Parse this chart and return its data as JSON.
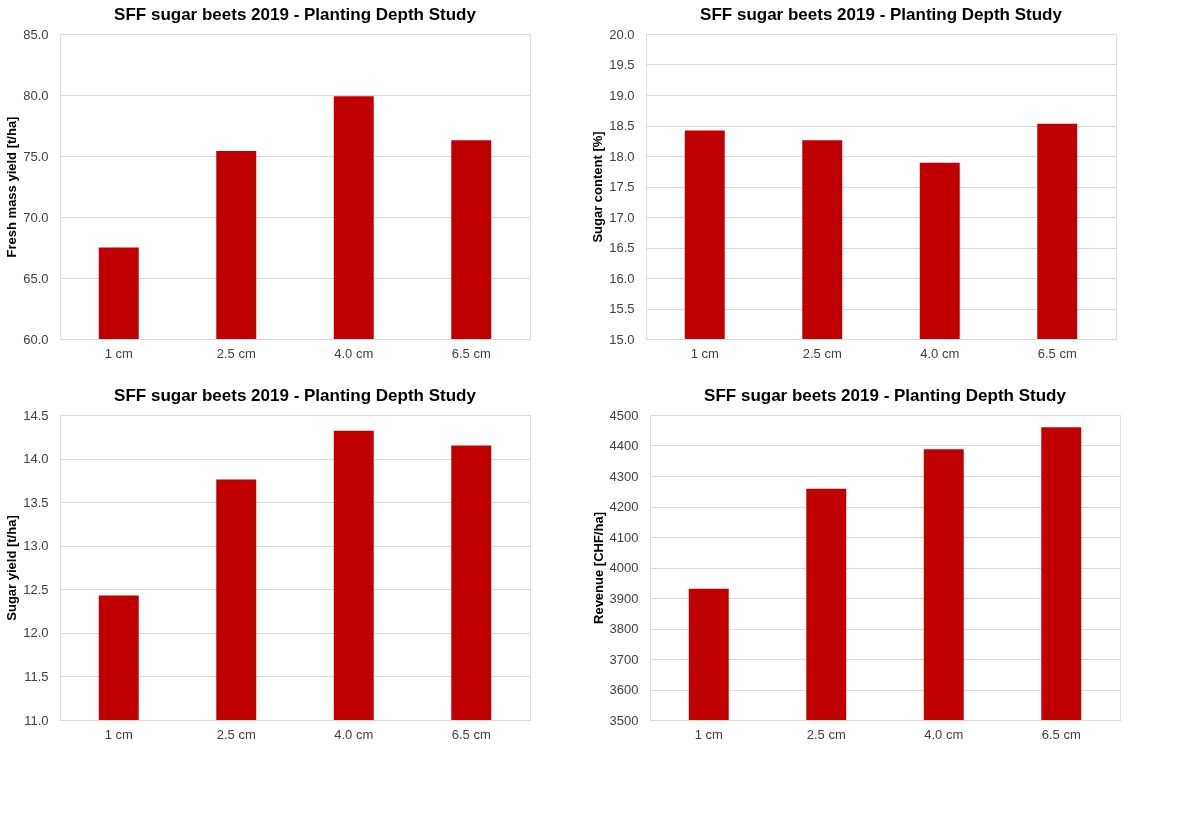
{
  "chart_data": [
    {
      "type": "bar",
      "title": "SFF sugar beets 2019 - Planting Depth Study",
      "ylabel": "Fresh mass yield [t/ha]",
      "categories": [
        "1 cm",
        "2.5 cm",
        "4.0 cm",
        "6.5 cm"
      ],
      "values": [
        67.5,
        75.4,
        79.9,
        76.3
      ],
      "color": "#c00000",
      "ylim": [
        60,
        85
      ],
      "yticks": [
        {
          "value": 60,
          "label": "60.0"
        },
        {
          "value": 65,
          "label": "65.0"
        },
        {
          "value": 70,
          "label": "70.0"
        },
        {
          "value": 75,
          "label": "75.0"
        },
        {
          "value": 80,
          "label": "80.0"
        },
        {
          "value": 85,
          "label": "85.0"
        }
      ],
      "grid": "y"
    },
    {
      "type": "bar",
      "title": "SFF sugar beets 2019 - Planting Depth Study",
      "ylabel": "Sugar content [%]",
      "categories": [
        "1 cm",
        "2.5 cm",
        "4.0 cm",
        "6.5 cm"
      ],
      "values": [
        18.42,
        18.26,
        17.89,
        18.53
      ],
      "color": "#c00000",
      "ylim": [
        15,
        20
      ],
      "yticks": [
        {
          "value": 15,
          "label": "15.0"
        },
        15.5,
        {
          "value": 16,
          "label": "16.0"
        },
        16.5,
        {
          "value": 17,
          "label": "17.0"
        },
        17.5,
        {
          "value": 18,
          "label": "18.0"
        },
        18.5,
        {
          "value": 19,
          "label": "19.0"
        },
        19.5,
        {
          "value": 20,
          "label": "20.0"
        }
      ],
      "grid": "y"
    },
    {
      "type": "bar",
      "title": "SFF sugar beets 2019 - Planting Depth Study",
      "ylabel": "Sugar yield [t/ha]",
      "categories": [
        "1 cm",
        "2.5 cm",
        "4.0 cm",
        "6.5 cm"
      ],
      "values": [
        12.43,
        13.76,
        14.32,
        14.15
      ],
      "color": "#c00000",
      "ylim": [
        11,
        14.5
      ],
      "yticks": [
        {
          "value": 11,
          "label": "11.0"
        },
        11.5,
        {
          "value": 12,
          "label": "12.0"
        },
        12.5,
        {
          "value": 13,
          "label": "13.0"
        },
        13.5,
        {
          "value": 14,
          "label": "14.0"
        },
        14.5
      ],
      "grid": "y"
    },
    {
      "type": "bar",
      "title": "SFF sugar beets 2019 - Planting Depth Study",
      "ylabel": "Revenue [CHF/ha]",
      "categories": [
        "1 cm",
        "2.5 cm",
        "4.0 cm",
        "6.5 cm"
      ],
      "values": [
        3930,
        4258,
        4388,
        4460
      ],
      "color": "#c00000",
      "ylim": [
        3500,
        4500
      ],
      "yticks": [
        3500,
        3600,
        3700,
        3800,
        3900,
        4000,
        4100,
        4200,
        4300,
        4400,
        4500
      ],
      "grid": "y"
    }
  ]
}
